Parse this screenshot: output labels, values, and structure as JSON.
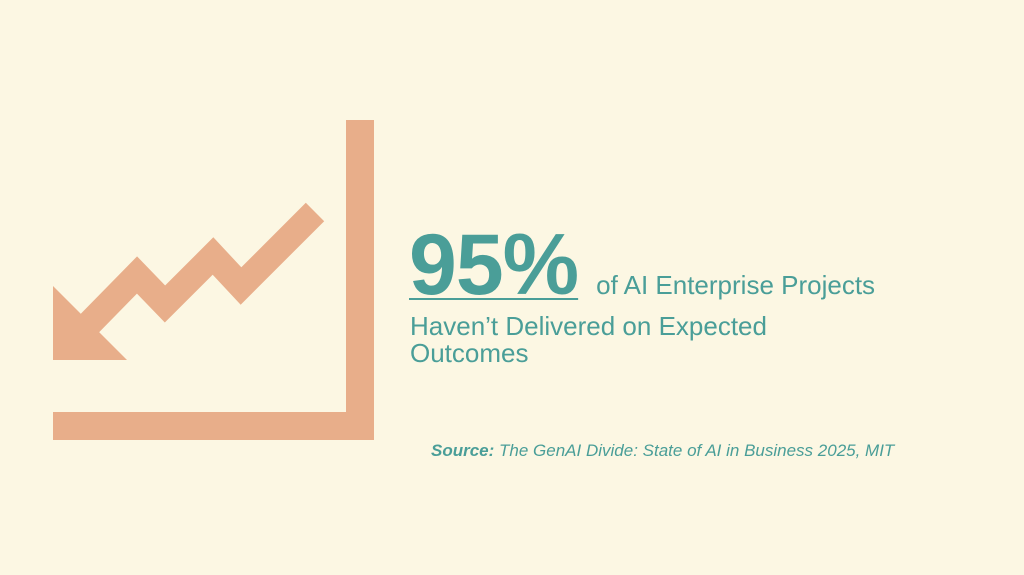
{
  "headline": {
    "stat_value": "95%",
    "stat_tail": "of AI Enterprise Projects",
    "description": "Haven’t Delivered on Expected Outcomes"
  },
  "source": {
    "label": "Source:",
    "text": "The GenAI Divide: State of AI in Business 2025, MIT"
  },
  "icon": {
    "name": "declining-trend-chart-icon"
  },
  "colors": {
    "background": "#fcf7e3",
    "accent": "#e8ae8a",
    "text": "#4a9e98"
  }
}
